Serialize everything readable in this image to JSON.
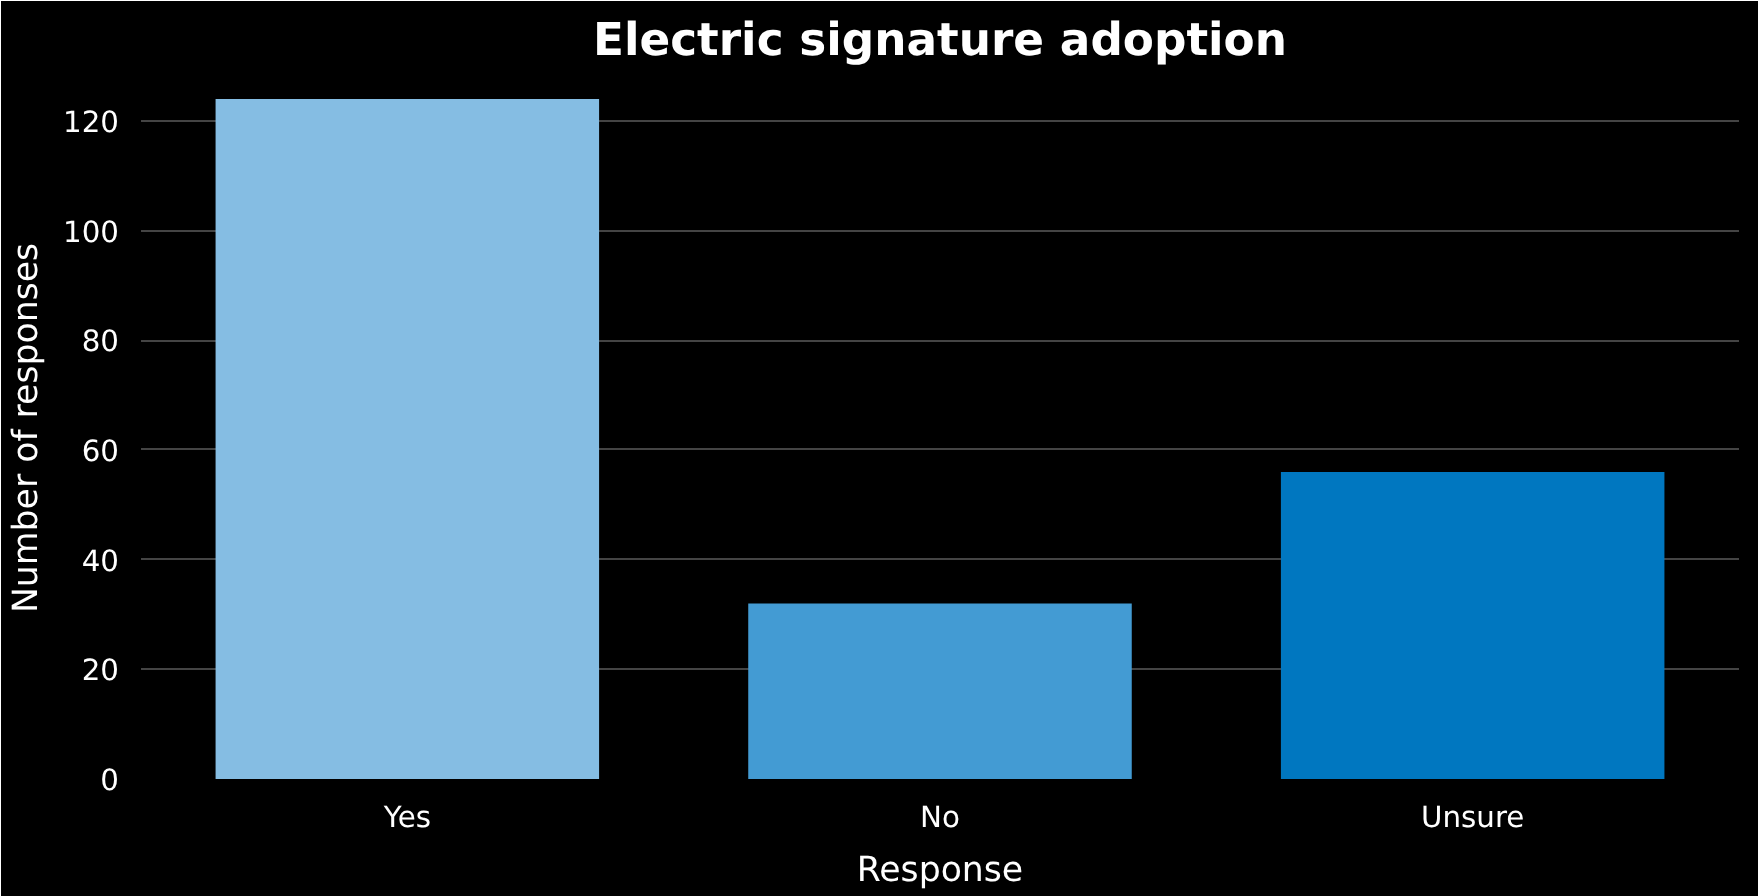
{
  "chart_data": {
    "type": "bar",
    "title": "Electric signature adoption",
    "xlabel": "Response",
    "ylabel": "Number of responses",
    "categories": [
      "Yes",
      "No",
      "Unsure"
    ],
    "values": [
      124,
      32,
      56
    ],
    "colors": [
      "#85bde3",
      "#439bd3",
      "#0077c0"
    ],
    "ylim": [
      0,
      128
    ],
    "yticks": [
      0,
      20,
      40,
      60,
      80,
      100,
      120
    ],
    "grid": "y"
  }
}
